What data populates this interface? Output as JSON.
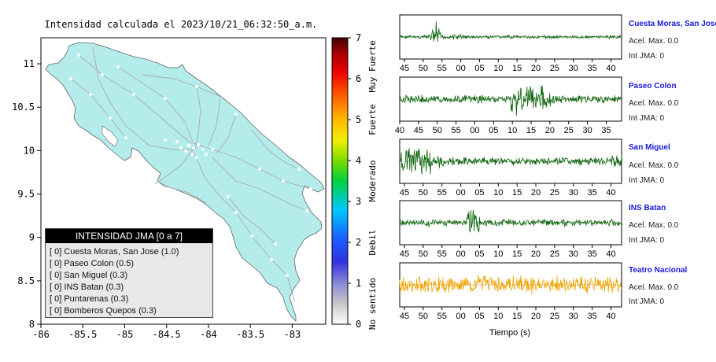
{
  "map": {
    "title": "Intensidad calculada el 2023/10/21_06:32:50_a.m.",
    "x_ticks": [
      "-86",
      "-85.5",
      "-85",
      "-84.5",
      "-84",
      "-83.5",
      "-83"
    ],
    "y_ticks": [
      "11",
      "10.5",
      "10",
      "9.5",
      "9",
      "8.5",
      "8"
    ],
    "land_color": "#b4ecec",
    "legend": {
      "title": "INTENSIDAD JMA [0 a 7]",
      "items": [
        "[ 0]  Cuesta Moras, San Jose (1.0)",
        "[ 0]  Paseo Colon (0.5)",
        "[ 0]  San Miguel (0.3)",
        "[ 0]  INS Batan (0.3)",
        "[ 0]  Puntarenas (0.3)",
        "[ 0]  Bomberos Quepos (0.3)"
      ]
    }
  },
  "colorbar": {
    "ticks": [
      "0",
      "1",
      "2",
      "3",
      "4",
      "5",
      "6",
      "7"
    ],
    "labels": [
      "No sentido",
      "Debil",
      "Moderado",
      "Fuerte",
      "Muy Fuerte"
    ]
  },
  "waveforms": {
    "xlabel": "Tiempo (s)",
    "stations": [
      {
        "name": "Cuesta Moras, San Jose",
        "acel": "Acel. Max. 0.0",
        "jma": "Int JMA: 0",
        "color": "#0a640a",
        "ticks": [
          "45",
          "50",
          "55",
          "00",
          "05",
          "10",
          "15",
          "20",
          "25",
          "30",
          "35",
          "40"
        ]
      },
      {
        "name": "Paseo Colon",
        "acel": "Acel. Max. 0.0",
        "jma": "Int JMA: 0",
        "color": "#0a640a",
        "ticks": [
          "40",
          "45",
          "50",
          "55",
          "00",
          "05",
          "10",
          "15",
          "20",
          "25",
          "30",
          "35"
        ]
      },
      {
        "name": "San Miguel",
        "acel": "Acel. Max. 0.0",
        "jma": "Int JMA: 0",
        "color": "#0a640a",
        "ticks": [
          "45",
          "50",
          "55",
          "00",
          "05",
          "10",
          "15",
          "20",
          "25",
          "30",
          "35",
          "40"
        ]
      },
      {
        "name": "INS Batan",
        "acel": "Acel. Max. 0.0",
        "jma": "Int JMA: 0",
        "color": "#0a640a",
        "ticks": [
          "45",
          "50",
          "55",
          "00",
          "05",
          "10",
          "15",
          "20",
          "25",
          "30",
          "35",
          "40"
        ]
      },
      {
        "name": "Teatro Nacional",
        "acel": "Acel. Max. 0.0",
        "jma": "Int JMA: 0",
        "color": "#f2a500",
        "ticks": [
          "45",
          "50",
          "55",
          "00",
          "05",
          "10",
          "15",
          "20",
          "25",
          "30",
          "35",
          "40"
        ]
      }
    ]
  },
  "chart_data": [
    {
      "type": "map",
      "title": "Intensidad calculada el 2023/10/21_06:32:50_a.m.",
      "xlim": [
        -86,
        -82.6
      ],
      "ylim": [
        8,
        11.3
      ],
      "legend_title": "INTENSIDAD JMA [0 a 7]",
      "stations": [
        {
          "name": "Cuesta Moras, San Jose",
          "class": 0,
          "intensity": 1.0
        },
        {
          "name": "Paseo Colon",
          "class": 0,
          "intensity": 0.5
        },
        {
          "name": "San Miguel",
          "class": 0,
          "intensity": 0.3
        },
        {
          "name": "INS Batan",
          "class": 0,
          "intensity": 0.3
        },
        {
          "name": "Puntarenas",
          "class": 0,
          "intensity": 0.3
        },
        {
          "name": "Bomberos Quepos",
          "class": 0,
          "intensity": 0.3
        }
      ],
      "colorbar_range": [
        0,
        7
      ]
    },
    {
      "type": "line",
      "xlabel": "Tiempo (s)",
      "series": [
        {
          "name": "Cuesta Moras, San Jose",
          "acel_max": 0.0,
          "int_jma": 0
        },
        {
          "name": "Paseo Colon",
          "acel_max": 0.0,
          "int_jma": 0
        },
        {
          "name": "San Miguel",
          "acel_max": 0.0,
          "int_jma": 0
        },
        {
          "name": "INS Batan",
          "acel_max": 0.0,
          "int_jma": 0
        },
        {
          "name": "Teatro Nacional",
          "acel_max": 0.0,
          "int_jma": 0
        }
      ]
    }
  ]
}
